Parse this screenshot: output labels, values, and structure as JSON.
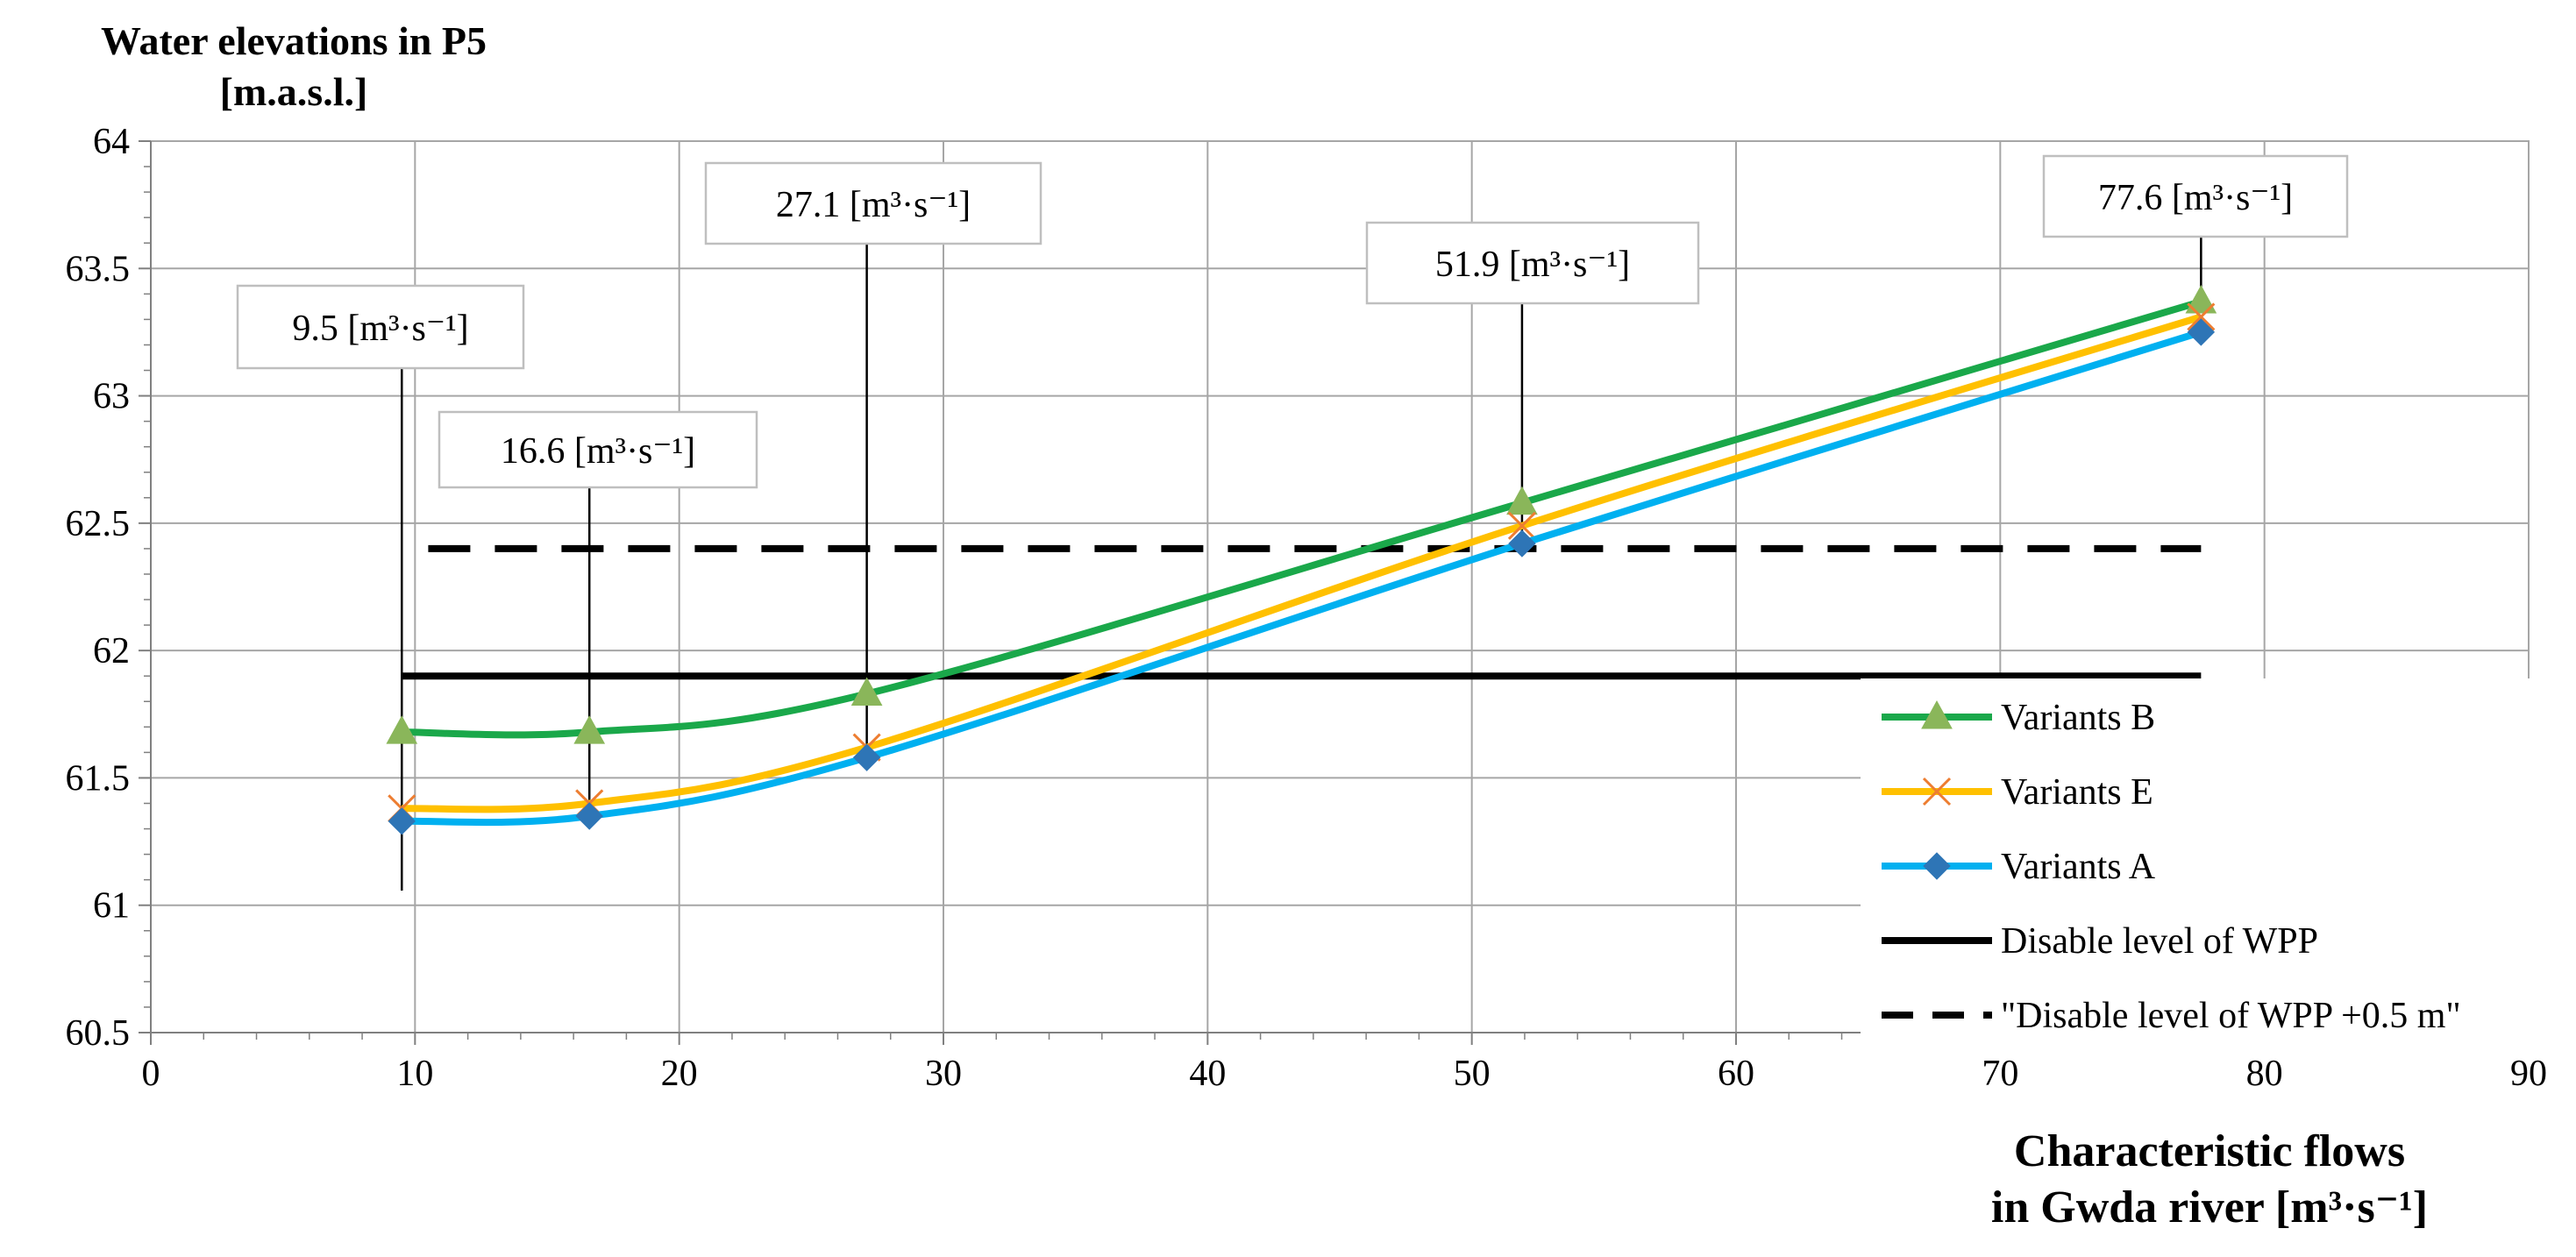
{
  "chart_data": {
    "type": "line",
    "ylabel": [
      "Water elevations in P5",
      "[m.a.s.l.]"
    ],
    "xlabel": [
      "Characteristic flows",
      "in Gwda river [m³·s⁻¹]"
    ],
    "xlim": [
      0,
      90
    ],
    "ylim": [
      60.5,
      64
    ],
    "xticks": [
      0,
      10,
      20,
      30,
      40,
      50,
      60,
      70,
      80,
      90
    ],
    "yticks": [
      60.5,
      61,
      61.5,
      62,
      62.5,
      63,
      63.5,
      64
    ],
    "x": [
      9.5,
      16.6,
      27.1,
      51.9,
      77.6
    ],
    "grid": true,
    "legend_position": "bottom-right",
    "series": [
      {
        "name": "Variants B",
        "values": [
          61.68,
          61.68,
          61.83,
          62.58,
          63.37
        ],
        "color": "#1aa84a",
        "marker": "triangle",
        "marker_color": "#8ab65a"
      },
      {
        "name": "Variants E",
        "values": [
          61.38,
          61.4,
          61.62,
          62.49,
          63.31
        ],
        "color": "#ffc000",
        "marker": "x",
        "marker_color": "#ed7d31"
      },
      {
        "name": "Variants A",
        "values": [
          61.33,
          61.35,
          61.58,
          62.42,
          63.25
        ],
        "color": "#00b0f0",
        "marker": "diamond",
        "marker_color": "#2e75b6"
      }
    ],
    "reference_lines": [
      {
        "name": "Disable level of WPP",
        "y": 61.9,
        "x_range": [
          9.5,
          77.6
        ],
        "style": "solid",
        "color": "#000000"
      },
      {
        "name": "\"Disable level of WPP +0.5 m\"",
        "y": 62.4,
        "x_range": [
          10.5,
          77.6
        ],
        "style": "dashed",
        "color": "#000000"
      }
    ],
    "callouts": [
      {
        "x": 9.5,
        "label": "9.5 [m³·s⁻¹]"
      },
      {
        "x": 16.6,
        "label": "16.6 [m³·s⁻¹]"
      },
      {
        "x": 27.1,
        "label": "27.1 [m³·s⁻¹]"
      },
      {
        "x": 51.9,
        "label": "51.9 [m³·s⁻¹]"
      },
      {
        "x": 77.6,
        "label": "77.6 [m³·s⁻¹]"
      }
    ]
  }
}
